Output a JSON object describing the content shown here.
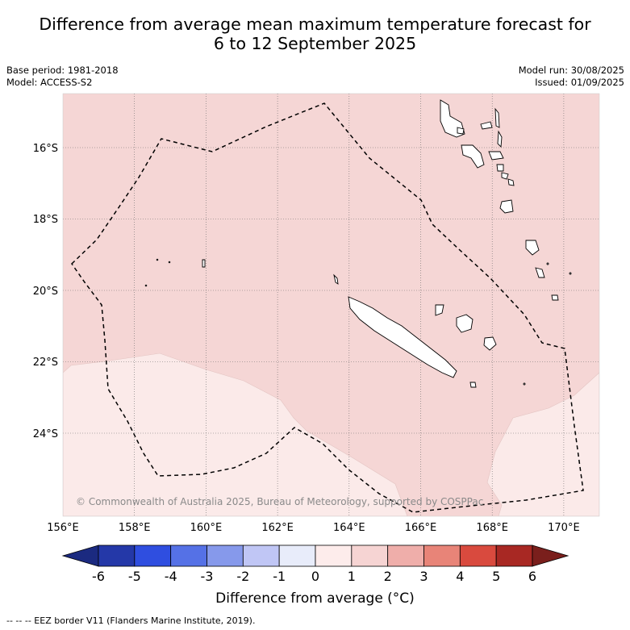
{
  "title_line1": "Difference from average mean maximum temperature forecast for",
  "title_line2": "6 to 12 September 2025",
  "base_period": "Base period: 1981-2018",
  "model": "Model: ACCESS-S2",
  "model_run": "Model run: 30/08/2025",
  "issued": "Issued: 01/09/2025",
  "credit": "© Commonwealth of Australia 2025, Bureau of Meteorology, supported by COSPPac",
  "map": {
    "lon_range": [
      156,
      171
    ],
    "lat_range": [
      -26.2,
      -14.4
    ],
    "lon_ticks": [
      "156°E",
      "158°E",
      "160°E",
      "162°E",
      "164°E",
      "166°E",
      "168°E",
      "170°E"
    ],
    "lat_ticks": [
      "16°S",
      "18°S",
      "20°S",
      "22°S",
      "24°S"
    ],
    "grid": "dotted",
    "dominant_anomaly_color": "#f5d6d5",
    "lower_anomaly_color": "#fbeae9",
    "eez_style": "dashed black"
  },
  "colorbar": {
    "ticks": [
      "-6",
      "-5",
      "-4",
      "-3",
      "-2",
      "-1",
      "0",
      "1",
      "2",
      "3",
      "4",
      "5",
      "6"
    ],
    "colors": [
      "#2438a8",
      "#2f4ee0",
      "#5571e6",
      "#8699eb",
      "#c0c6f5",
      "#e8ecfa",
      "#fdeceb",
      "#f6d4d3",
      "#efaeaa",
      "#e88478",
      "#d94a3e",
      "#a82823"
    ],
    "under_color": "#1b2a80",
    "over_color": "#7a1f1c",
    "label": "Difference from average (°C)"
  },
  "footnote": "--  --  -- EEZ border V11 (Flanders Marine Institute, 2019)."
}
